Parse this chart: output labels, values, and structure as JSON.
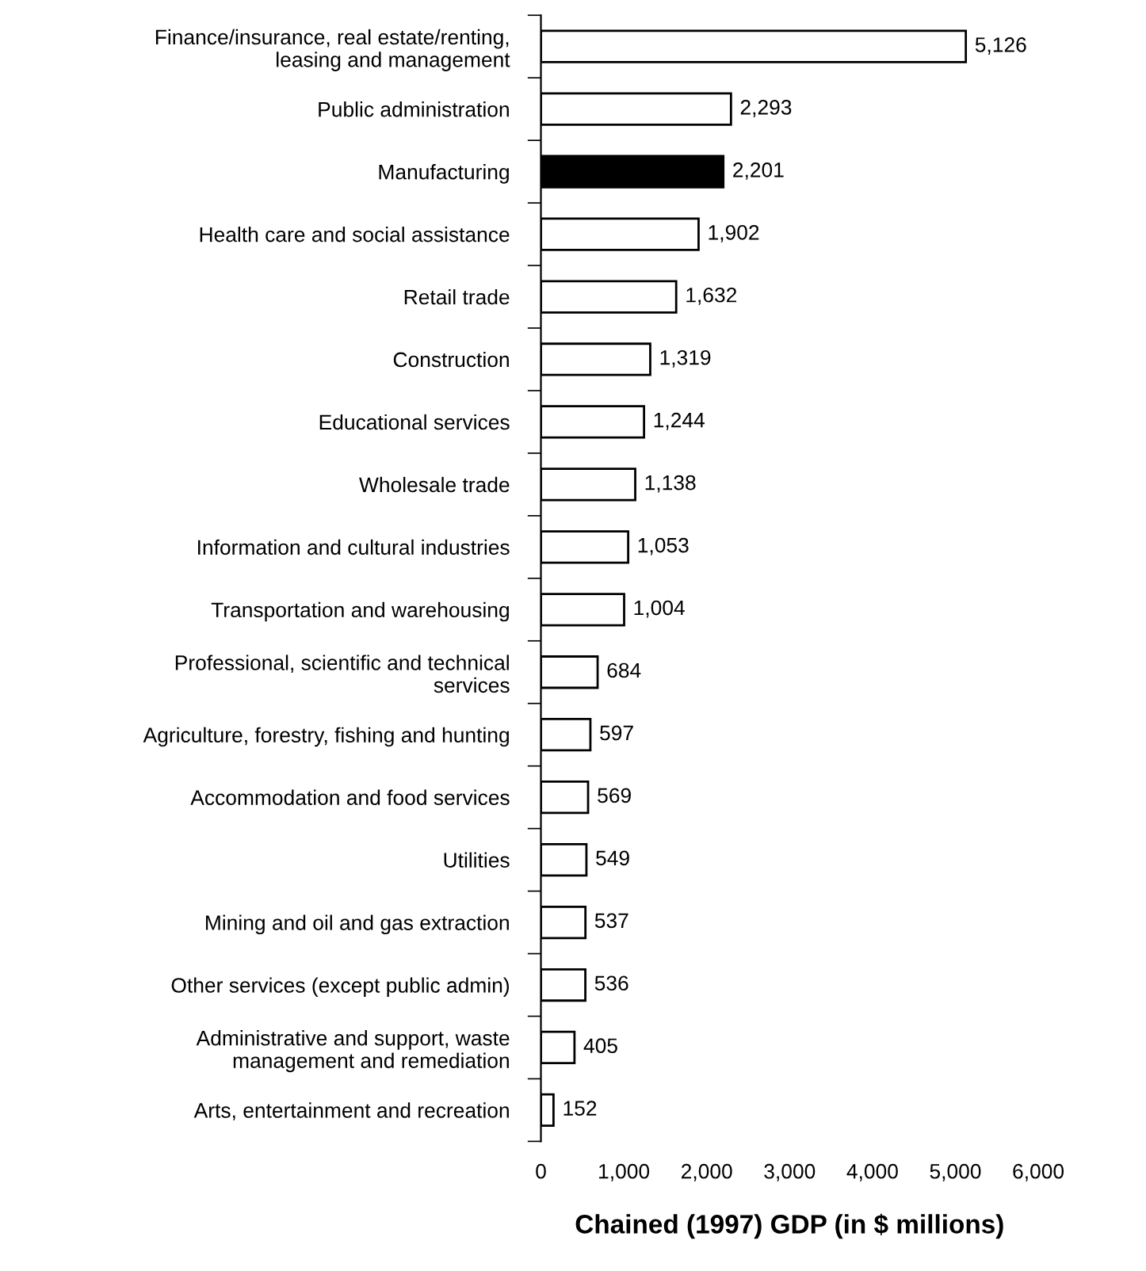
{
  "chart_data": {
    "type": "bar",
    "orientation": "horizontal",
    "xlabel": "Chained (1997) GDP (in $ millions)",
    "categories": [
      "Finance/insurance, real estate/renting,\nleasing and management",
      "Public administration",
      "Manufacturing",
      "Health care and social assistance",
      "Retail trade",
      "Construction",
      "Educational services",
      "Wholesale trade",
      "Information and cultural industries",
      "Transportation and warehousing",
      "Professional, scientific and technical\nservices",
      "Agriculture, forestry, fishing and hunting",
      "Accommodation and food services",
      "Utilities",
      "Mining and oil and gas extraction",
      "Other services (except public admin)",
      "Administrative and support, waste\nmanagement and remediation",
      "Arts, entertainment and recreation"
    ],
    "values": [
      5126,
      2293,
      2201,
      1902,
      1632,
      1319,
      1244,
      1138,
      1053,
      1004,
      684,
      597,
      569,
      549,
      537,
      536,
      405,
      152
    ],
    "value_labels": [
      "5,126",
      "2,293",
      "2,201",
      "1,902",
      "1,632",
      "1,319",
      "1,244",
      "1,138",
      "1,053",
      "1,004",
      "684",
      "597",
      "569",
      "549",
      "537",
      "536",
      "405",
      "152"
    ],
    "colors": [
      "#ffffff",
      "#ffffff",
      "#000000",
      "#ffffff",
      "#ffffff",
      "#ffffff",
      "#ffffff",
      "#ffffff",
      "#ffffff",
      "#ffffff",
      "#ffffff",
      "#ffffff",
      "#ffffff",
      "#ffffff",
      "#ffffff",
      "#ffffff",
      "#ffffff",
      "#ffffff"
    ],
    "xlim": [
      0,
      6000
    ],
    "xticks": [
      0,
      {
        "value": 1000,
        "label": "1,000"
      },
      {
        "value": 2000,
        "label": "2,000"
      },
      {
        "value": 3000,
        "label": "3,000"
      },
      {
        "value": 4000,
        "label": "4,000"
      },
      {
        "value": 5000,
        "label": "5,000"
      },
      {
        "value": 6000,
        "label": "6,000"
      }
    ],
    "grid": false
  }
}
